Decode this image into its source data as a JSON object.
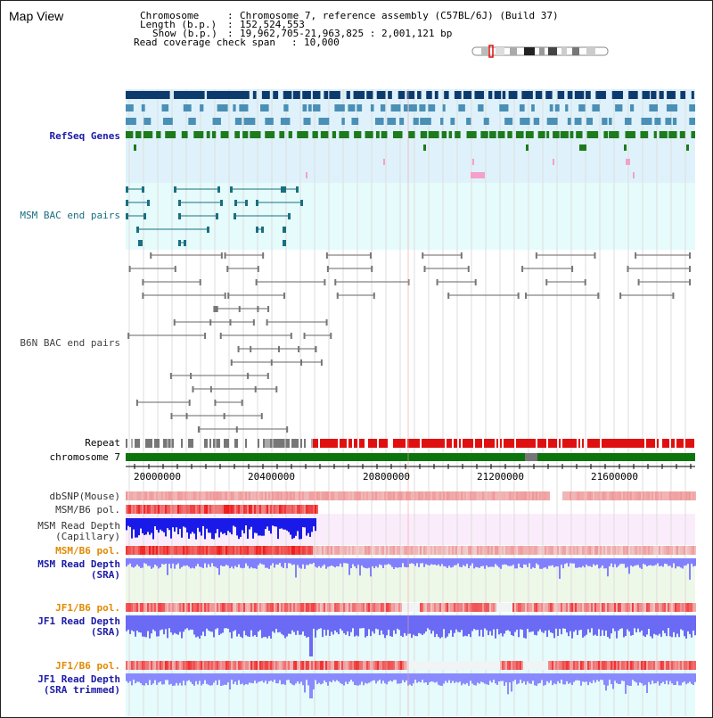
{
  "app_title": "Map View",
  "header": {
    "chromosome_label": "Chromosome",
    "chromosome_value": "Chromosome 7, reference assembly (C57BL/6J) (Build 37)",
    "length_label": "Length (b.p.)",
    "length_value": "152,524,553",
    "show_label": "Show (b.p.)",
    "show_value": "19,962,705-21,963,825 : 2,001,121 bp",
    "coverage_label": "Read coverage check span",
    "coverage_value": "10,000"
  },
  "tracks": {
    "refseq": "RefSeq Genes",
    "msm_bac": "MSM BAC end pairs",
    "b6n_bac": "B6N BAC end pairs",
    "repeat": "Repeat",
    "chromosome": "chromosome 7",
    "dbsnp": "dbSNP(Mouse)",
    "msm_pol_1": "MSM/B6 pol.",
    "msm_depth_cap_1": "MSM Read Depth",
    "msm_depth_cap_2": "(Capillary)",
    "msm_pol_2": "MSM/B6 pol.",
    "msm_depth_sra_1": "MSM Read Depth",
    "msm_depth_sra_2": "(SRA)",
    "jf1_pol_1": "JF1/B6 pol.",
    "jf1_depth_1": "JF1 Read Depth",
    "jf1_depth_2": "(SRA)",
    "jf1_pol_2": "JF1/B6 pol.",
    "jf1_trim_1": "JF1 Read Depth",
    "jf1_trim_2": "(SRA trimmed)"
  },
  "axis_ticks": [
    "20000000",
    "20400000",
    "20800000",
    "21200000",
    "21600000"
  ],
  "colors": {
    "refseq_dark": "#0d3b6e",
    "refseq_mid": "#4a8fb5",
    "refseq_green": "#1d7a1d",
    "refseq_bg": "#dff2fb",
    "msm_bg": "#e6fbfb",
    "repeat_red": "#e01010",
    "chrom_green": "#0b740b",
    "depth_blue": "#3c3cff"
  }
}
